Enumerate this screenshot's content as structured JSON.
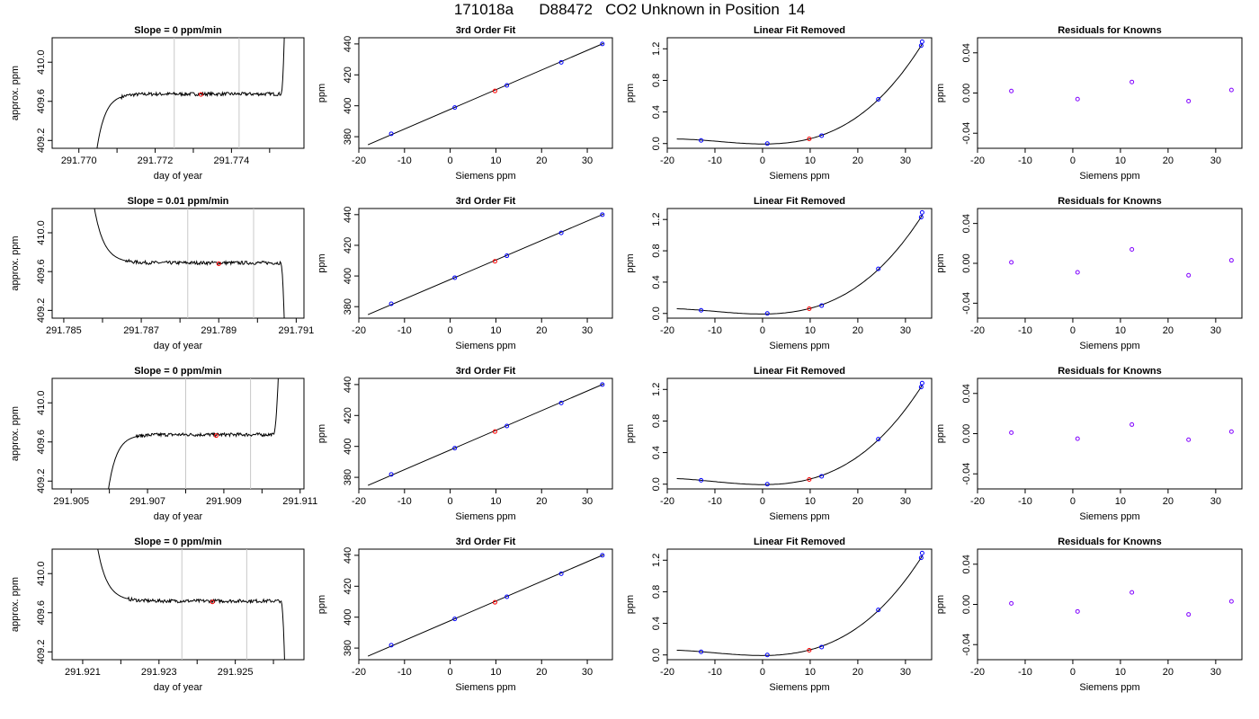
{
  "page": {
    "title": "171018a      D88472   CO2 Unknown in Position  14"
  },
  "styles": {
    "axis_color": "#000000",
    "line_color": "#000000",
    "unknown_marker_color": "#ff0000",
    "known_marker_color": "#0000ff",
    "residual_marker_color": "#8000ff",
    "vline_color": "#c8c8c8"
  },
  "chart_data": [
    {
      "id": "r1-trace",
      "type": "line",
      "title": "Slope =  0  ppm/min",
      "xlabel": "day of year",
      "ylabel": "approx. ppm",
      "xlim": [
        291.7693,
        291.7759
      ],
      "ylim": [
        409.12,
        410.25
      ],
      "xticks": [
        291.77,
        291.772,
        291.774
      ],
      "xticklabels": [
        "291.770",
        "291.772",
        "291.774"
      ],
      "xminor": [
        291.771,
        291.773,
        291.775
      ],
      "yticks": [
        409.2,
        409.6,
        410.0
      ],
      "yticklabels": [
        "409.2",
        "409.6",
        "410.0"
      ],
      "vlines": [
        291.7725,
        291.7742
      ],
      "shape": {
        "x_start": 291.77045,
        "x_rise_end": 291.7711,
        "x_plateau_end": 291.7753,
        "x_end": 291.7754,
        "y_low": 409.05,
        "y_plateau": 409.675,
        "y_high": 410.5,
        "decay": 0.00022
      },
      "unknown_point": {
        "x": 291.7732,
        "y": 409.67
      }
    },
    {
      "id": "r1-fit",
      "type": "line+scatter",
      "title": "3rd Order Fit",
      "xlabel": "Siemens ppm",
      "ylabel": "ppm",
      "xlim": [
        -20,
        35.5
      ],
      "ylim": [
        372.5,
        444
      ],
      "xticks": [
        -20,
        -10,
        0,
        10,
        20,
        30
      ],
      "xticklabels": [
        "-20",
        "-10",
        "0",
        "10",
        "20",
        "30"
      ],
      "yticks": [
        380,
        400,
        420,
        440
      ],
      "yticklabels": [
        "380",
        "400",
        "420",
        "440"
      ],
      "line": {
        "x": [
          -18,
          33.5
        ],
        "y": [
          374.8,
          440.3
        ]
      },
      "knowns": {
        "x": [
          -12.9,
          1.0,
          12.4,
          24.3,
          33.3
        ],
        "y": [
          381.9,
          398.9,
          413.2,
          428.1,
          440.0
        ]
      },
      "unknowns": {
        "x": [
          9.8
        ],
        "y": [
          409.6
        ]
      }
    },
    {
      "id": "r1-linear",
      "type": "line+scatter",
      "title": "Linear Fit Removed",
      "xlabel": "Siemens ppm",
      "ylabel": "ppm",
      "xlim": [
        -20,
        35.5
      ],
      "ylim": [
        -0.06,
        1.34
      ],
      "xticks": [
        -20,
        -10,
        0,
        10,
        20,
        30
      ],
      "xticklabels": [
        "-20",
        "-10",
        "0",
        "10",
        "20",
        "30"
      ],
      "yticks": [
        0.0,
        0.4,
        0.8,
        1.2
      ],
      "yticklabels": [
        "0.0",
        "0.4",
        "0.8",
        "1.2"
      ],
      "curve": {
        "x_from": -18,
        "x_to": 33.6,
        "fit_x": [
          -18,
          -12.9,
          1.0,
          12.4,
          24.3,
          33.3
        ],
        "fit_y": [
          0.06,
          0.04,
          0.0,
          0.1,
          0.56,
          1.24
        ]
      },
      "knowns": {
        "x": [
          -12.9,
          1.0,
          12.4,
          24.3,
          33.3,
          33.5
        ],
        "y": [
          0.04,
          0.0,
          0.1,
          0.56,
          1.24,
          1.29
        ]
      },
      "unknowns": {
        "x": [
          9.8
        ],
        "y": [
          0.06
        ]
      }
    },
    {
      "id": "r1-resid",
      "type": "scatter",
      "title": "Residuals for Knowns",
      "xlabel": "Siemens ppm",
      "ylabel": "ppm",
      "xlim": [
        -20,
        35.5
      ],
      "ylim": [
        -0.055,
        0.055
      ],
      "xticks": [
        -20,
        -10,
        0,
        10,
        20,
        30
      ],
      "xticklabels": [
        "-20",
        "-10",
        "0",
        "10",
        "20",
        "30"
      ],
      "yticks": [
        -0.04,
        0.0,
        0.04
      ],
      "yticklabels": [
        "-0.04",
        "0.00",
        "0.04"
      ],
      "points": {
        "x": [
          -12.9,
          1.0,
          12.4,
          24.3,
          33.3
        ],
        "y": [
          0.002,
          -0.006,
          0.011,
          -0.008,
          0.003
        ]
      }
    },
    {
      "id": "r2-trace",
      "type": "line",
      "title": "Slope =  0.01  ppm/min",
      "xlabel": "day of year",
      "ylabel": "approx. ppm",
      "xlim": [
        291.7847,
        291.7912
      ],
      "ylim": [
        409.12,
        410.25
      ],
      "xticks": [
        291.785,
        291.787,
        291.789,
        291.791
      ],
      "xticklabels": [
        "291.785",
        "291.787",
        "291.789",
        "291.791"
      ],
      "xminor": [
        291.786,
        291.788,
        291.79
      ],
      "yticks": [
        409.2,
        409.6,
        410.0
      ],
      "yticklabels": [
        "409.2",
        "409.6",
        "410.0"
      ],
      "vlines": [
        291.7882,
        291.7899
      ],
      "shape": {
        "x_start": 291.7857,
        "x_rise_end": 291.7866,
        "x_plateau_end": 291.7906,
        "x_end": 291.7907,
        "y_low": 410.5,
        "y_plateau": 409.69,
        "y_high": 409.0,
        "decay": 0.00025
      },
      "unknown_point": {
        "x": 291.789,
        "y": 409.68
      }
    },
    {
      "id": "r2-fit",
      "type": "line+scatter",
      "title": "3rd Order Fit",
      "xlabel": "Siemens ppm",
      "ylabel": "ppm",
      "xlim": [
        -20,
        35.5
      ],
      "ylim": [
        372.5,
        444
      ],
      "xticks": [
        -20,
        -10,
        0,
        10,
        20,
        30
      ],
      "xticklabels": [
        "-20",
        "-10",
        "0",
        "10",
        "20",
        "30"
      ],
      "yticks": [
        380,
        400,
        420,
        440
      ],
      "yticklabels": [
        "380",
        "400",
        "420",
        "440"
      ],
      "line": {
        "x": [
          -18,
          33.5
        ],
        "y": [
          374.8,
          440.3
        ]
      },
      "knowns": {
        "x": [
          -12.9,
          1.0,
          12.4,
          24.3,
          33.3
        ],
        "y": [
          381.9,
          398.9,
          413.2,
          428.1,
          440.0
        ]
      },
      "unknowns": {
        "x": [
          9.8
        ],
        "y": [
          409.6
        ]
      }
    },
    {
      "id": "r2-linear",
      "type": "line+scatter",
      "title": "Linear Fit Removed",
      "xlabel": "Siemens ppm",
      "ylabel": "ppm",
      "xlim": [
        -20,
        35.5
      ],
      "ylim": [
        -0.06,
        1.34
      ],
      "xticks": [
        -20,
        -10,
        0,
        10,
        20,
        30
      ],
      "xticklabels": [
        "-20",
        "-10",
        "0",
        "10",
        "20",
        "30"
      ],
      "yticks": [
        0.0,
        0.4,
        0.8,
        1.2
      ],
      "yticklabels": [
        "0.0",
        "0.4",
        "0.8",
        "1.2"
      ],
      "curve": {
        "x_from": -18,
        "x_to": 33.6,
        "fit_x": [
          -18,
          -12.9,
          1.0,
          12.4,
          24.3,
          33.3
        ],
        "fit_y": [
          0.06,
          0.04,
          0.0,
          0.1,
          0.57,
          1.23
        ]
      },
      "knowns": {
        "x": [
          -12.9,
          1.0,
          12.4,
          24.3,
          33.3,
          33.5
        ],
        "y": [
          0.04,
          0.0,
          0.1,
          0.57,
          1.23,
          1.29
        ]
      },
      "unknowns": {
        "x": [
          9.8
        ],
        "y": [
          0.06
        ]
      }
    },
    {
      "id": "r2-resid",
      "type": "scatter",
      "title": "Residuals for Knowns",
      "xlabel": "Siemens ppm",
      "ylabel": "ppm",
      "xlim": [
        -20,
        35.5
      ],
      "ylim": [
        -0.055,
        0.055
      ],
      "xticks": [
        -20,
        -10,
        0,
        10,
        20,
        30
      ],
      "xticklabels": [
        "-20",
        "-10",
        "0",
        "10",
        "20",
        "30"
      ],
      "yticks": [
        -0.04,
        0.0,
        0.04
      ],
      "yticklabels": [
        "-0.04",
        "0.00",
        "0.04"
      ],
      "points": {
        "x": [
          -12.9,
          1.0,
          12.4,
          24.3,
          33.3
        ],
        "y": [
          0.001,
          -0.009,
          0.014,
          -0.012,
          0.003
        ]
      }
    },
    {
      "id": "r3-trace",
      "type": "line",
      "title": "Slope =  0  ppm/min",
      "xlabel": "day of year",
      "ylabel": "approx. ppm",
      "xlim": [
        291.9045,
        291.9111
      ],
      "ylim": [
        409.12,
        410.25
      ],
      "xticks": [
        291.905,
        291.907,
        291.909,
        291.911
      ],
      "xticklabels": [
        "291.905",
        "291.907",
        "291.909",
        "291.911"
      ],
      "xminor": [
        291.906,
        291.908,
        291.91
      ],
      "yticks": [
        409.2,
        409.6,
        410.0
      ],
      "yticklabels": [
        "409.2",
        "409.6",
        "410.0"
      ],
      "vlines": [
        291.908,
        291.9097
      ],
      "shape": {
        "x_start": 291.90595,
        "x_rise_end": 291.9067,
        "x_plateau_end": 291.9103,
        "x_end": 291.91045,
        "y_low": 409.05,
        "y_plateau": 409.675,
        "y_high": 410.5,
        "decay": 0.00022
      },
      "unknown_point": {
        "x": 291.9088,
        "y": 409.665
      }
    },
    {
      "id": "r3-fit",
      "type": "line+scatter",
      "title": "3rd Order Fit",
      "xlabel": "Siemens ppm",
      "ylabel": "ppm",
      "xlim": [
        -20,
        35.5
      ],
      "ylim": [
        372.5,
        444
      ],
      "xticks": [
        -20,
        -10,
        0,
        10,
        20,
        30
      ],
      "xticklabels": [
        "-20",
        "-10",
        "0",
        "10",
        "20",
        "30"
      ],
      "yticks": [
        380,
        400,
        420,
        440
      ],
      "yticklabels": [
        "380",
        "400",
        "420",
        "440"
      ],
      "line": {
        "x": [
          -18,
          33.5
        ],
        "y": [
          374.8,
          440.3
        ]
      },
      "knowns": {
        "x": [
          -12.9,
          1.0,
          12.4,
          24.3,
          33.3
        ],
        "y": [
          381.9,
          398.9,
          413.2,
          428.1,
          440.0
        ]
      },
      "unknowns": {
        "x": [
          9.8
        ],
        "y": [
          409.6
        ]
      }
    },
    {
      "id": "r3-linear",
      "type": "line+scatter",
      "title": "Linear Fit Removed",
      "xlabel": "Siemens ppm",
      "ylabel": "ppm",
      "xlim": [
        -20,
        35.5
      ],
      "ylim": [
        -0.06,
        1.34
      ],
      "xticks": [
        -20,
        -10,
        0,
        10,
        20,
        30
      ],
      "xticklabels": [
        "-20",
        "-10",
        "0",
        "10",
        "20",
        "30"
      ],
      "yticks": [
        0.0,
        0.4,
        0.8,
        1.2
      ],
      "yticklabels": [
        "0.0",
        "0.4",
        "0.8",
        "1.2"
      ],
      "curve": {
        "x_from": -18,
        "x_to": 33.6,
        "fit_x": [
          -18,
          -12.9,
          1.0,
          12.4,
          24.3,
          33.3
        ],
        "fit_y": [
          0.07,
          0.05,
          0.0,
          0.1,
          0.57,
          1.23
        ]
      },
      "knowns": {
        "x": [
          -12.9,
          1.0,
          12.4,
          24.3,
          33.3,
          33.5
        ],
        "y": [
          0.05,
          0.0,
          0.1,
          0.57,
          1.23,
          1.28
        ]
      },
      "unknowns": {
        "x": [
          9.8
        ],
        "y": [
          0.06
        ]
      }
    },
    {
      "id": "r3-resid",
      "type": "scatter",
      "title": "Residuals for Knowns",
      "xlabel": "Siemens ppm",
      "ylabel": "ppm",
      "xlim": [
        -20,
        35.5
      ],
      "ylim": [
        -0.055,
        0.055
      ],
      "xticks": [
        -20,
        -10,
        0,
        10,
        20,
        30
      ],
      "xticklabels": [
        "-20",
        "-10",
        "0",
        "10",
        "20",
        "30"
      ],
      "yticks": [
        -0.04,
        0.0,
        0.04
      ],
      "yticklabels": [
        "-0.04",
        "0.00",
        "0.04"
      ],
      "points": {
        "x": [
          -12.9,
          1.0,
          12.4,
          24.3,
          33.3
        ],
        "y": [
          0.001,
          -0.005,
          0.009,
          -0.006,
          0.002
        ]
      }
    },
    {
      "id": "r4-trace",
      "type": "line",
      "title": "Slope =  0  ppm/min",
      "xlabel": "day of year",
      "ylabel": "approx. ppm",
      "xlim": [
        291.9202,
        291.9268
      ],
      "ylim": [
        409.12,
        410.25
      ],
      "xticks": [
        291.921,
        291.923,
        291.925
      ],
      "xticklabels": [
        "291.921",
        "291.923",
        "291.925"
      ],
      "xminor": [
        291.922,
        291.924,
        291.926
      ],
      "yticks": [
        409.2,
        409.6,
        410.0
      ],
      "yticklabels": [
        "409.2",
        "409.6",
        "410.0"
      ],
      "vlines": [
        291.9236,
        291.9253
      ],
      "shape": {
        "x_start": 291.9213,
        "x_rise_end": 291.9222,
        "x_plateau_end": 291.9262,
        "x_end": 291.9263,
        "y_low": 410.5,
        "y_plateau": 409.72,
        "y_high": 409.0,
        "decay": 0.00025
      },
      "unknown_point": {
        "x": 291.9244,
        "y": 409.71
      }
    },
    {
      "id": "r4-fit",
      "type": "line+scatter",
      "title": "3rd Order Fit",
      "xlabel": "Siemens ppm",
      "ylabel": "ppm",
      "xlim": [
        -20,
        35.5
      ],
      "ylim": [
        372.5,
        444
      ],
      "xticks": [
        -20,
        -10,
        0,
        10,
        20,
        30
      ],
      "xticklabels": [
        "-20",
        "-10",
        "0",
        "10",
        "20",
        "30"
      ],
      "yticks": [
        380,
        400,
        420,
        440
      ],
      "yticklabels": [
        "380",
        "400",
        "420",
        "440"
      ],
      "line": {
        "x": [
          -18,
          33.5
        ],
        "y": [
          374.8,
          440.3
        ]
      },
      "knowns": {
        "x": [
          -12.9,
          1.0,
          12.4,
          24.3,
          33.3
        ],
        "y": [
          381.9,
          398.9,
          413.2,
          428.1,
          440.0
        ]
      },
      "unknowns": {
        "x": [
          9.8
        ],
        "y": [
          409.6
        ]
      }
    },
    {
      "id": "r4-linear",
      "type": "line+scatter",
      "title": "Linear Fit Removed",
      "xlabel": "Siemens ppm",
      "ylabel": "ppm",
      "xlim": [
        -20,
        35.5
      ],
      "ylim": [
        -0.06,
        1.34
      ],
      "xticks": [
        -20,
        -10,
        0,
        10,
        20,
        30
      ],
      "xticklabels": [
        "-20",
        "-10",
        "0",
        "10",
        "20",
        "30"
      ],
      "yticks": [
        0.0,
        0.4,
        0.8,
        1.2
      ],
      "yticklabels": [
        "0.0",
        "0.4",
        "0.8",
        "1.2"
      ],
      "curve": {
        "x_from": -18,
        "x_to": 33.6,
        "fit_x": [
          -18,
          -12.9,
          1.0,
          12.4,
          24.3,
          33.3
        ],
        "fit_y": [
          0.06,
          0.04,
          0.0,
          0.1,
          0.57,
          1.23
        ]
      },
      "knowns": {
        "x": [
          -12.9,
          1.0,
          12.4,
          24.3,
          33.3,
          33.5
        ],
        "y": [
          0.04,
          0.0,
          0.1,
          0.57,
          1.23,
          1.29
        ]
      },
      "unknowns": {
        "x": [
          9.8
        ],
        "y": [
          0.06
        ]
      }
    },
    {
      "id": "r4-resid",
      "type": "scatter",
      "title": "Residuals for Knowns",
      "xlabel": "Siemens ppm",
      "ylabel": "ppm",
      "xlim": [
        -20,
        35.5
      ],
      "ylim": [
        -0.055,
        0.055
      ],
      "xticks": [
        -20,
        -10,
        0,
        10,
        20,
        30
      ],
      "xticklabels": [
        "-20",
        "-10",
        "0",
        "10",
        "20",
        "30"
      ],
      "yticks": [
        -0.04,
        0.0,
        0.04
      ],
      "yticklabels": [
        "-0.04",
        "0.00",
        "0.04"
      ],
      "points": {
        "x": [
          -12.9,
          1.0,
          12.4,
          24.3,
          33.3
        ],
        "y": [
          0.001,
          -0.007,
          0.012,
          -0.01,
          0.003
        ]
      }
    }
  ]
}
